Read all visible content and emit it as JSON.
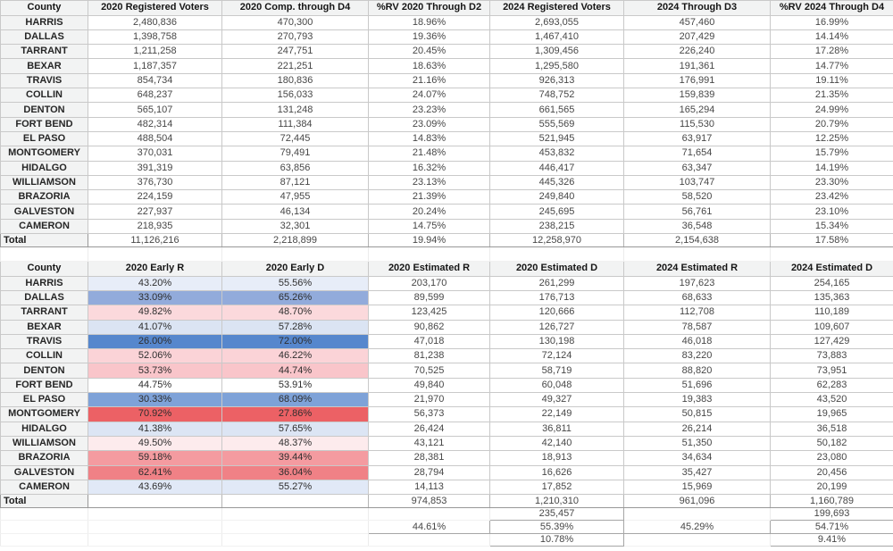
{
  "colors": {
    "header_background": "#f2f3f3",
    "grid_border": "#c9c9c9",
    "dem_strong": "#5687cd",
    "rep_strong": "#ec6165"
  },
  "table1": {
    "headers": [
      "County",
      "2020 Registered Voters",
      "2020 Comp. through D4",
      "%RV 2020 Through D2",
      "2024 Registered Voters",
      "2024 Through D3",
      "%RV 2024 Through D4"
    ],
    "rows": [
      {
        "county": "HARRIS",
        "values": [
          "2,480,836",
          "470,300",
          "18.96%",
          "2,693,055",
          "457,460",
          "16.99%"
        ]
      },
      {
        "county": "DALLAS",
        "values": [
          "1,398,758",
          "270,793",
          "19.36%",
          "1,467,410",
          "207,429",
          "14.14%"
        ]
      },
      {
        "county": "TARRANT",
        "values": [
          "1,211,258",
          "247,751",
          "20.45%",
          "1,309,456",
          "226,240",
          "17.28%"
        ]
      },
      {
        "county": "BEXAR",
        "values": [
          "1,187,357",
          "221,251",
          "18.63%",
          "1,295,580",
          "191,361",
          "14.77%"
        ]
      },
      {
        "county": "TRAVIS",
        "values": [
          "854,734",
          "180,836",
          "21.16%",
          "926,313",
          "176,991",
          "19.11%"
        ]
      },
      {
        "county": "COLLIN",
        "values": [
          "648,237",
          "156,033",
          "24.07%",
          "748,752",
          "159,839",
          "21.35%"
        ]
      },
      {
        "county": "DENTON",
        "values": [
          "565,107",
          "131,248",
          "23.23%",
          "661,565",
          "165,294",
          "24.99%"
        ]
      },
      {
        "county": "FORT BEND",
        "values": [
          "482,314",
          "111,384",
          "23.09%",
          "555,569",
          "115,530",
          "20.79%"
        ]
      },
      {
        "county": "EL PASO",
        "values": [
          "488,504",
          "72,445",
          "14.83%",
          "521,945",
          "63,917",
          "12.25%"
        ]
      },
      {
        "county": "MONTGOMERY",
        "values": [
          "370,031",
          "79,491",
          "21.48%",
          "453,832",
          "71,654",
          "15.79%"
        ]
      },
      {
        "county": "HIDALGO",
        "values": [
          "391,319",
          "63,856",
          "16.32%",
          "446,417",
          "63,347",
          "14.19%"
        ]
      },
      {
        "county": "WILLIAMSON",
        "values": [
          "376,730",
          "87,121",
          "23.13%",
          "445,326",
          "103,747",
          "23.30%"
        ]
      },
      {
        "county": "BRAZORIA",
        "values": [
          "224,159",
          "47,955",
          "21.39%",
          "249,840",
          "58,520",
          "23.42%"
        ]
      },
      {
        "county": "GALVESTON",
        "values": [
          "227,937",
          "46,134",
          "20.24%",
          "245,695",
          "56,761",
          "23.10%"
        ]
      },
      {
        "county": "CAMERON",
        "values": [
          "218,935",
          "32,301",
          "14.75%",
          "238,215",
          "36,548",
          "15.34%"
        ]
      }
    ],
    "total": {
      "label": "Total",
      "values": [
        "11,126,216",
        "2,218,899",
        "19.94%",
        "12,258,970",
        "2,154,638",
        "17.58%"
      ]
    }
  },
  "table2": {
    "headers": [
      "County",
      "2020 Early R",
      "2020 Early D",
      "2020 Estimated R",
      "2020 Estimated D",
      "2024 Estimated R",
      "2024 Estimated D"
    ],
    "rows": [
      {
        "county": "HARRIS",
        "early_r": "43.20%",
        "early_d": "55.56%",
        "estimates": [
          "203,170",
          "261,299",
          "197,623",
          "254,165"
        ],
        "shade": "#e7edf8"
      },
      {
        "county": "DALLAS",
        "early_r": "33.09%",
        "early_d": "65.26%",
        "estimates": [
          "89,599",
          "176,713",
          "68,633",
          "135,363"
        ],
        "shade": "#92abdb"
      },
      {
        "county": "TARRANT",
        "early_r": "49.82%",
        "early_d": "48.70%",
        "estimates": [
          "123,425",
          "120,666",
          "112,708",
          "110,189"
        ],
        "shade": "#fbd9dc"
      },
      {
        "county": "BEXAR",
        "early_r": "41.07%",
        "early_d": "57.28%",
        "estimates": [
          "90,862",
          "126,727",
          "78,587",
          "109,607"
        ],
        "shade": "#dbe4f3"
      },
      {
        "county": "TRAVIS",
        "early_r": "26.00%",
        "early_d": "72.00%",
        "estimates": [
          "47,018",
          "130,198",
          "46,018",
          "127,429"
        ],
        "shade": "#5687cd"
      },
      {
        "county": "COLLIN",
        "early_r": "52.06%",
        "early_d": "46.22%",
        "estimates": [
          "81,238",
          "72,124",
          "83,220",
          "73,883"
        ],
        "shade": "#fbd3d7"
      },
      {
        "county": "DENTON",
        "early_r": "53.73%",
        "early_d": "44.74%",
        "estimates": [
          "70,525",
          "58,719",
          "88,820",
          "73,951"
        ],
        "shade": "#f9c5ca"
      },
      {
        "county": "FORT BEND",
        "early_r": "44.75%",
        "early_d": "53.91%",
        "estimates": [
          "49,840",
          "60,048",
          "51,696",
          "62,283"
        ],
        "shade": "#ffffff"
      },
      {
        "county": "EL PASO",
        "early_r": "30.33%",
        "early_d": "68.09%",
        "estimates": [
          "21,970",
          "49,327",
          "19,383",
          "43,520"
        ],
        "shade": "#7ea2d8"
      },
      {
        "county": "MONTGOMERY",
        "early_r": "70.92%",
        "early_d": "27.86%",
        "estimates": [
          "56,373",
          "22,149",
          "50,815",
          "19,965"
        ],
        "shade": "#ec6165"
      },
      {
        "county": "HIDALGO",
        "early_r": "41.38%",
        "early_d": "57.65%",
        "estimates": [
          "26,424",
          "36,811",
          "26,214",
          "36,518"
        ],
        "shade": "#dce5f4"
      },
      {
        "county": "WILLIAMSON",
        "early_r": "49.50%",
        "early_d": "48.37%",
        "estimates": [
          "43,121",
          "42,140",
          "51,350",
          "50,182"
        ],
        "shade": "#fdebed"
      },
      {
        "county": "BRAZORIA",
        "early_r": "59.18%",
        "early_d": "39.44%",
        "estimates": [
          "28,381",
          "18,913",
          "34,634",
          "23,080"
        ],
        "shade": "#f49ba0"
      },
      {
        "county": "GALVESTON",
        "early_r": "62.41%",
        "early_d": "36.04%",
        "estimates": [
          "28,794",
          "16,626",
          "35,427",
          "20,456"
        ],
        "shade": "#f08186"
      },
      {
        "county": "CAMERON",
        "early_r": "43.69%",
        "early_d": "55.27%",
        "estimates": [
          "14,113",
          "17,852",
          "15,969",
          "20,199"
        ],
        "shade": "#e1e9f7"
      }
    ],
    "total": {
      "label": "Total",
      "values": [
        "974,853",
        "1,210,310",
        "961,096",
        "1,160,789"
      ]
    },
    "extra_rows": [
      {
        "cells": [
          null,
          null,
          null,
          null,
          "235,457",
          null,
          "199,693"
        ]
      },
      {
        "cells": [
          null,
          null,
          null,
          "44.61%",
          "55.39%",
          "45.29%",
          "54.71%"
        ]
      },
      {
        "cells": [
          null,
          null,
          null,
          null,
          "10.78%",
          null,
          "9.41%"
        ]
      }
    ]
  }
}
